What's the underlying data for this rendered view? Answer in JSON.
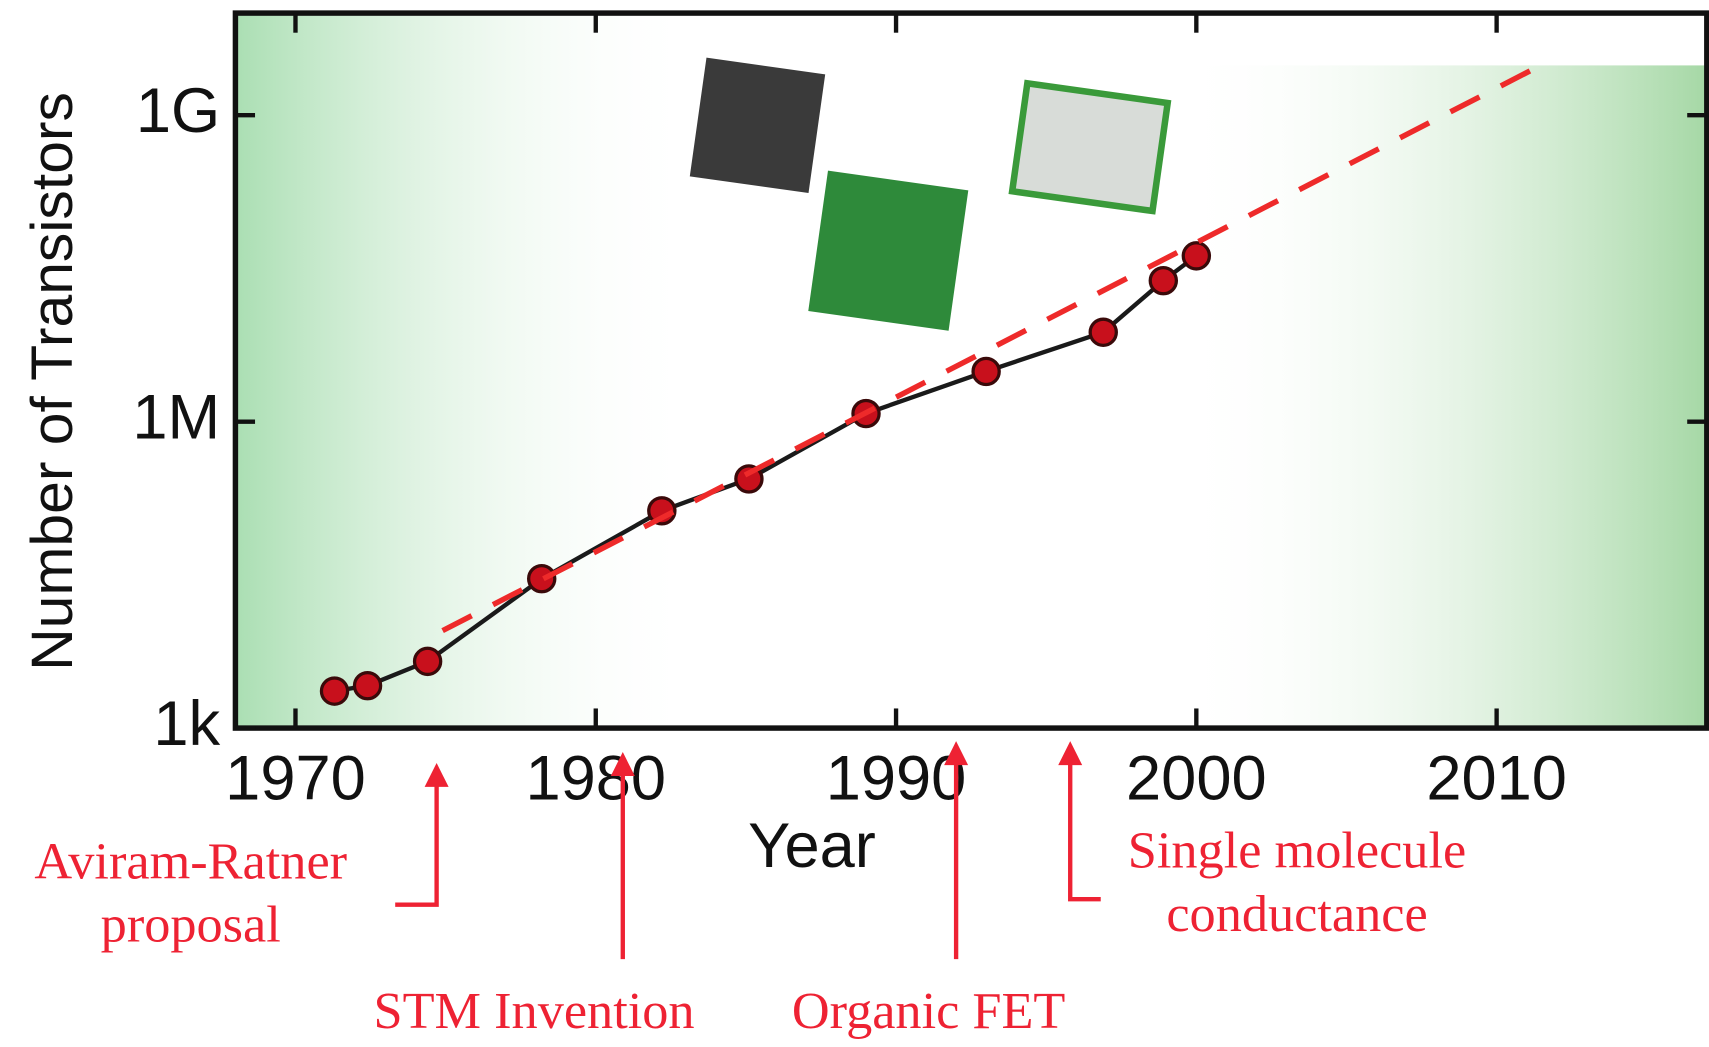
{
  "chart_data": {
    "type": "line",
    "x_label": "Year",
    "y_label": "Number of Transistors",
    "log_y": true,
    "xlim": [
      1968,
      2017
    ],
    "ylim": [
      1000,
      10000000000
    ],
    "xticks": [
      1970,
      1980,
      1990,
      2000,
      2010
    ],
    "yticks": [
      {
        "value": 1000,
        "label": "1k"
      },
      {
        "value": 1000000,
        "label": "1M"
      },
      {
        "value": 1000000000,
        "label": "1G"
      }
    ],
    "series": [
      {
        "color": "#c8101c",
        "line_color": "#1a1a1a",
        "style": "solid-markers",
        "x": [
          1971.3,
          1972.4,
          1974.4,
          1978.2,
          1982.2,
          1985.1,
          1989,
          1993,
          1996.9,
          1998.9,
          2000
        ],
        "values": [
          2300,
          2600,
          4500,
          29000,
          134000,
          275000,
          1200000,
          3100000,
          7500000,
          24000000,
          42000000
        ]
      },
      {
        "color": "#ee2a2a",
        "style": "dashed",
        "x": [
          1974.9,
          2011.2
        ],
        "values": [
          9000,
          2800000000
        ]
      }
    ],
    "annotations": [
      {
        "lines": [
          "Aviram-Ratner",
          "proposal"
        ],
        "x": 1974.7
      },
      {
        "lines": [
          "STM Invention"
        ],
        "x": 1980.9
      },
      {
        "lines": [
          "Organic FET"
        ],
        "x": 1992
      },
      {
        "lines": [
          "Single molecule",
          "conductance"
        ],
        "x": 1995.8
      }
    ]
  }
}
